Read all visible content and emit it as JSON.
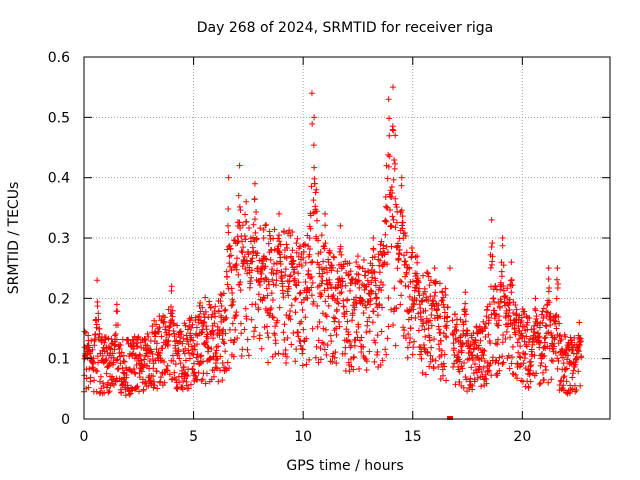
{
  "chart_data": {
    "type": "scatter",
    "title": "Day 268 of 2024, SRMTID for receiver riga",
    "xlabel": "GPS time / hours",
    "ylabel": "SRMTID / TECUs",
    "xlim": [
      0,
      24
    ],
    "ylim": [
      0,
      0.6
    ],
    "xticks": [
      0,
      5,
      10,
      15,
      20
    ],
    "xtick_labels": [
      "0",
      "5",
      "10",
      "15",
      "20"
    ],
    "yticks": [
      0,
      0.1,
      0.2,
      0.3,
      0.4,
      0.5,
      0.6
    ],
    "ytick_labels": [
      "0",
      "0.1",
      "0.2",
      "0.3",
      "0.4",
      "0.5",
      "0.6"
    ],
    "grid": true,
    "marker": "+",
    "color": "#ff0000",
    "series": [
      {
        "name": "SRMTID",
        "profile": [
          {
            "x": 0.0,
            "y": 0.1
          },
          {
            "x": 0.5,
            "y": 0.09
          },
          {
            "x": 1.0,
            "y": 0.09
          },
          {
            "x": 1.5,
            "y": 0.09
          },
          {
            "x": 2.0,
            "y": 0.085
          },
          {
            "x": 2.5,
            "y": 0.09
          },
          {
            "x": 3.0,
            "y": 0.1
          },
          {
            "x": 3.5,
            "y": 0.115
          },
          {
            "x": 4.0,
            "y": 0.12
          },
          {
            "x": 4.5,
            "y": 0.1
          },
          {
            "x": 5.0,
            "y": 0.12
          },
          {
            "x": 5.5,
            "y": 0.13
          },
          {
            "x": 6.0,
            "y": 0.13
          },
          {
            "x": 6.5,
            "y": 0.15
          },
          {
            "x": 7.0,
            "y": 0.22
          },
          {
            "x": 7.5,
            "y": 0.23
          },
          {
            "x": 8.0,
            "y": 0.22
          },
          {
            "x": 8.5,
            "y": 0.2
          },
          {
            "x": 9.0,
            "y": 0.21
          },
          {
            "x": 9.5,
            "y": 0.2
          },
          {
            "x": 10.0,
            "y": 0.19
          },
          {
            "x": 10.5,
            "y": 0.22
          },
          {
            "x": 11.0,
            "y": 0.19
          },
          {
            "x": 11.5,
            "y": 0.17
          },
          {
            "x": 12.0,
            "y": 0.17
          },
          {
            "x": 12.5,
            "y": 0.17
          },
          {
            "x": 13.0,
            "y": 0.17
          },
          {
            "x": 13.5,
            "y": 0.19
          },
          {
            "x": 14.0,
            "y": 0.25
          },
          {
            "x": 14.5,
            "y": 0.23
          },
          {
            "x": 15.0,
            "y": 0.18
          },
          {
            "x": 15.5,
            "y": 0.16
          },
          {
            "x": 16.0,
            "y": 0.15
          },
          {
            "x": 16.5,
            "y": 0.14
          },
          {
            "x": 17.0,
            "y": 0.11
          },
          {
            "x": 17.5,
            "y": 0.1
          },
          {
            "x": 18.0,
            "y": 0.1
          },
          {
            "x": 18.5,
            "y": 0.13
          },
          {
            "x": 19.0,
            "y": 0.16
          },
          {
            "x": 19.5,
            "y": 0.14
          },
          {
            "x": 20.0,
            "y": 0.12
          },
          {
            "x": 20.5,
            "y": 0.11
          },
          {
            "x": 21.0,
            "y": 0.12
          },
          {
            "x": 21.5,
            "y": 0.11
          },
          {
            "x": 22.0,
            "y": 0.09
          },
          {
            "x": 22.7,
            "y": 0.09
          }
        ],
        "peaks": [
          {
            "x": 0.2,
            "y": 0.13
          },
          {
            "x": 0.6,
            "y": 0.23
          },
          {
            "x": 1.5,
            "y": 0.19
          },
          {
            "x": 4.0,
            "y": 0.22
          },
          {
            "x": 6.6,
            "y": 0.4
          },
          {
            "x": 7.1,
            "y": 0.42
          },
          {
            "x": 7.4,
            "y": 0.36
          },
          {
            "x": 7.8,
            "y": 0.39
          },
          {
            "x": 8.2,
            "y": 0.3
          },
          {
            "x": 8.9,
            "y": 0.34
          },
          {
            "x": 9.5,
            "y": 0.31
          },
          {
            "x": 10.3,
            "y": 0.3
          },
          {
            "x": 10.4,
            "y": 0.54
          },
          {
            "x": 10.5,
            "y": 0.5
          },
          {
            "x": 10.6,
            "y": 0.38
          },
          {
            "x": 11.0,
            "y": 0.34
          },
          {
            "x": 11.7,
            "y": 0.32
          },
          {
            "x": 12.5,
            "y": 0.27
          },
          {
            "x": 13.2,
            "y": 0.3
          },
          {
            "x": 13.8,
            "y": 0.42
          },
          {
            "x": 13.9,
            "y": 0.53
          },
          {
            "x": 14.1,
            "y": 0.55
          },
          {
            "x": 14.2,
            "y": 0.47
          },
          {
            "x": 14.5,
            "y": 0.4
          },
          {
            "x": 15.2,
            "y": 0.27
          },
          {
            "x": 16.0,
            "y": 0.25
          },
          {
            "x": 16.7,
            "y": 0.25
          },
          {
            "x": 17.4,
            "y": 0.21
          },
          {
            "x": 18.6,
            "y": 0.33
          },
          {
            "x": 19.1,
            "y": 0.3
          },
          {
            "x": 19.5,
            "y": 0.26
          },
          {
            "x": 20.6,
            "y": 0.2
          },
          {
            "x": 21.2,
            "y": 0.25
          },
          {
            "x": 21.6,
            "y": 0.25
          },
          {
            "x": 22.6,
            "y": 0.16
          }
        ],
        "gaps": [
          {
            "from": 16.6,
            "to": 16.8
          }
        ],
        "outliers": [
          {
            "x": 16.7,
            "y": 0.0
          }
        ],
        "sampling_minutes": 0.6
      }
    ]
  }
}
